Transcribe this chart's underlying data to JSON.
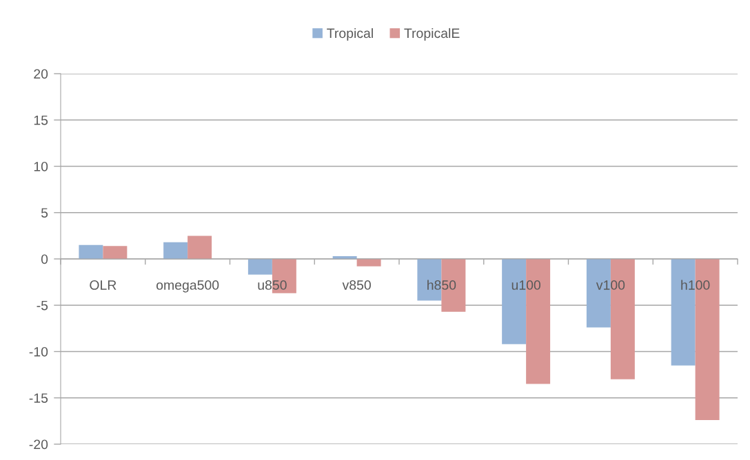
{
  "chart_data": {
    "type": "bar",
    "categories": [
      "OLR",
      "omega500",
      "u850",
      "v850",
      "h850",
      "u100",
      "v100",
      "h100"
    ],
    "series": [
      {
        "name": "Tropical",
        "color": "#95b3d7",
        "values": [
          1.5,
          1.8,
          -1.7,
          0.3,
          -4.5,
          -9.2,
          -7.4,
          -11.5
        ]
      },
      {
        "name": "TropicalE",
        "color": "#d99694",
        "values": [
          1.4,
          2.5,
          -3.7,
          -0.8,
          -5.7,
          -13.5,
          -13.0,
          -17.4
        ]
      }
    ],
    "ylim": [
      -20,
      20
    ],
    "yticks": [
      -20,
      -15,
      -10,
      -5,
      0,
      5,
      10,
      15,
      20
    ],
    "grid": "y",
    "legend": "top"
  }
}
